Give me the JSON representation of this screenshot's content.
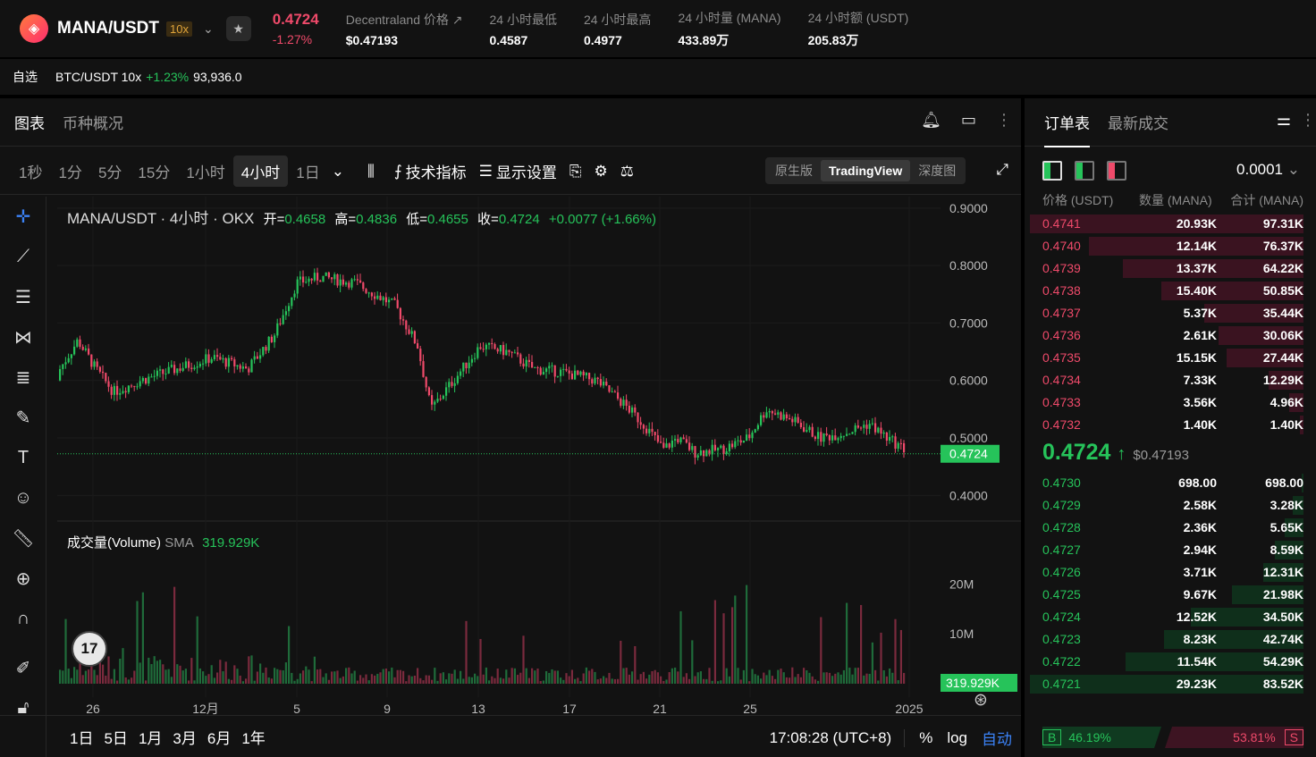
{
  "header": {
    "pair": "MANA/USDT",
    "leverage": "10x",
    "price": "0.4724",
    "change": "-1.27%",
    "stats": [
      {
        "label": "Decentraland 价格",
        "value": "$0.47193"
      },
      {
        "label": "24 小时最低",
        "value": "0.4587"
      },
      {
        "label": "24 小时最高",
        "value": "0.4977"
      },
      {
        "label": "24 小时量 (MANA)",
        "value": "433.89万"
      },
      {
        "label": "24 小时额 (USDT)",
        "value": "205.83万"
      }
    ]
  },
  "watchlist": {
    "label": "自选",
    "pair": "BTC/USDT 10x",
    "change": "+1.23%",
    "price": "93,936.0"
  },
  "chart_tabs": {
    "chart": "图表",
    "overview": "币种概况"
  },
  "timeframes": [
    "1秒",
    "1分",
    "5分",
    "15分",
    "1小时",
    "4小时",
    "1日"
  ],
  "active_tf": "4小时",
  "tools": {
    "indicators": "技术指标",
    "display": "显示设置"
  },
  "views": [
    "原生版",
    "TradingView",
    "深度图"
  ],
  "legend": {
    "title": "MANA/USDT · 4小时 · OKX",
    "o_label": "开=",
    "o": "0.4658",
    "h_label": "高=",
    "h": "0.4836",
    "l_label": "低=",
    "l": "0.4655",
    "c_label": "收=",
    "c": "0.4724",
    "chg": "+0.0077 (+1.66%)"
  },
  "volume_legend": {
    "label": "成交量(Volume)",
    "sma": "SMA",
    "value": "319.929K"
  },
  "price_axis": [
    "0.9000",
    "0.8000",
    "0.7000",
    "0.6000",
    "0.5000",
    "0.4000"
  ],
  "price_tag": "0.4724",
  "volume_axis": [
    "20M",
    "10M"
  ],
  "volume_tag": "319.929K",
  "time_axis": [
    "26",
    "12月",
    "5",
    "9",
    "13",
    "17",
    "21",
    "25",
    "2025"
  ],
  "bottom": {
    "ranges": [
      "1日",
      "5日",
      "1月",
      "3月",
      "6月",
      "1年"
    ],
    "clock": "17:08:28 (UTC+8)",
    "pct": "%",
    "log": "log",
    "auto": "自动"
  },
  "orderbook": {
    "tab_book": "订单表",
    "tab_trades": "最新成交",
    "precision": "0.0001",
    "cols": [
      "价格 (USDT)",
      "数量 (MANA)",
      "合计 (MANA)"
    ],
    "asks": [
      {
        "p": "0.4741",
        "q": "20.93K",
        "t": "97.31K",
        "w": 1.0
      },
      {
        "p": "0.4740",
        "q": "12.14K",
        "t": "76.37K",
        "w": 0.785
      },
      {
        "p": "0.4739",
        "q": "13.37K",
        "t": "64.22K",
        "w": 0.66
      },
      {
        "p": "0.4738",
        "q": "15.40K",
        "t": "50.85K",
        "w": 0.52
      },
      {
        "p": "0.4737",
        "q": "5.37K",
        "t": "35.44K",
        "w": 0.364
      },
      {
        "p": "0.4736",
        "q": "2.61K",
        "t": "30.06K",
        "w": 0.309
      },
      {
        "p": "0.4735",
        "q": "15.15K",
        "t": "27.44K",
        "w": 0.282
      },
      {
        "p": "0.4734",
        "q": "7.33K",
        "t": "12.29K",
        "w": 0.126
      },
      {
        "p": "0.4733",
        "q": "3.56K",
        "t": "4.96K",
        "w": 0.051
      },
      {
        "p": "0.4732",
        "q": "1.40K",
        "t": "1.40K",
        "w": 0.014
      }
    ],
    "mid_price": "0.4724",
    "mid_index": "$0.47193",
    "bids": [
      {
        "p": "0.4730",
        "q": "698.00",
        "t": "698.00",
        "w": 0.008
      },
      {
        "p": "0.4729",
        "q": "2.58K",
        "t": "3.28K",
        "w": 0.039
      },
      {
        "p": "0.4728",
        "q": "2.36K",
        "t": "5.65K",
        "w": 0.068
      },
      {
        "p": "0.4727",
        "q": "2.94K",
        "t": "8.59K",
        "w": 0.103
      },
      {
        "p": "0.4726",
        "q": "3.71K",
        "t": "12.31K",
        "w": 0.147
      },
      {
        "p": "0.4725",
        "q": "9.67K",
        "t": "21.98K",
        "w": 0.263
      },
      {
        "p": "0.4724",
        "q": "12.52K",
        "t": "34.50K",
        "w": 0.413
      },
      {
        "p": "0.4723",
        "q": "8.23K",
        "t": "42.74K",
        "w": 0.511
      },
      {
        "p": "0.4722",
        "q": "11.54K",
        "t": "54.29K",
        "w": 0.65
      },
      {
        "p": "0.4721",
        "q": "29.23K",
        "t": "83.52K",
        "w": 1.0
      }
    ],
    "buy_label": "B",
    "buy_pct": "46.19%",
    "sell_label": "S",
    "sell_pct": "53.81%",
    "buy_ratio": 0.4619
  },
  "colors": {
    "up": "#26c35a",
    "down": "#ef4a6a",
    "panel": "#121212"
  }
}
